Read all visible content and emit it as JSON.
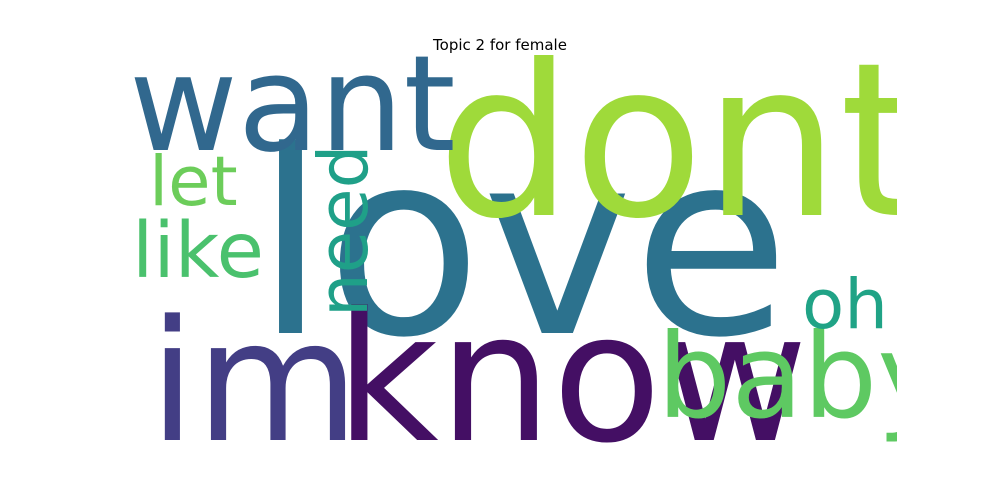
{
  "chart_data": {
    "type": "wordcloud",
    "title": "Topic 2 for female",
    "words": [
      {
        "text": "love",
        "weight": 1.0,
        "color": "#2c728e"
      },
      {
        "text": "dont",
        "weight": 0.82,
        "color": "#9fda3a"
      },
      {
        "text": "know",
        "weight": 0.72,
        "color": "#440f64"
      },
      {
        "text": "im",
        "weight": 0.66,
        "color": "#433e85"
      },
      {
        "text": "want",
        "weight": 0.56,
        "color": "#31688e"
      },
      {
        "text": "baby",
        "weight": 0.5,
        "color": "#5ec962"
      },
      {
        "text": "like",
        "weight": 0.34,
        "color": "#4ac16d"
      },
      {
        "text": "need",
        "weight": 0.32,
        "color": "#1fa088"
      },
      {
        "text": "let",
        "weight": 0.3,
        "color": "#6ccd5a"
      },
      {
        "text": "oh",
        "weight": 0.3,
        "color": "#20a386"
      }
    ]
  }
}
